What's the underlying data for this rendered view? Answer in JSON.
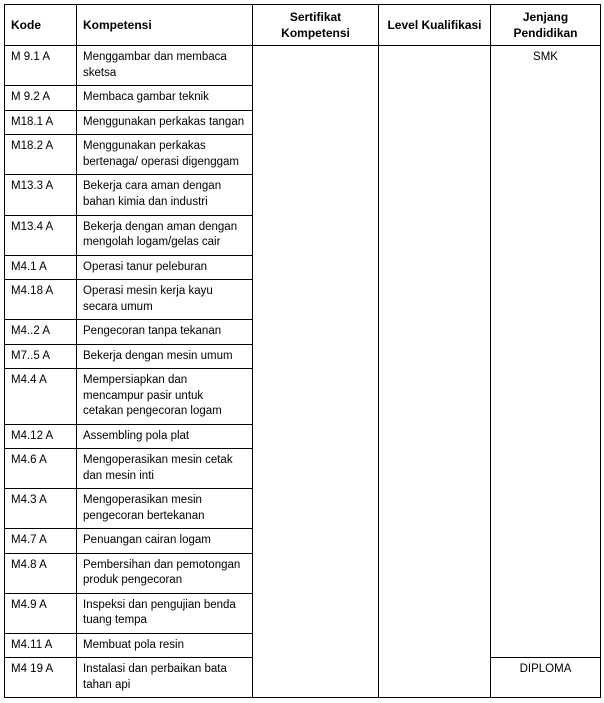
{
  "headers": {
    "kode": "Kode",
    "kompetensi": "Kompetensi",
    "sertifikat": "Sertifikat Kompetensi",
    "level": "Level Kualifikasi",
    "jenjang": "Jenjang Pendidikan"
  },
  "jenjang": {
    "smk": "SMK",
    "diploma": "DIPLOMA"
  },
  "rows": [
    {
      "kode": "M 9.1 A",
      "komp": "Menggambar dan membaca sketsa"
    },
    {
      "kode": "M 9.2 A",
      "komp": "Membaca gambar teknik"
    },
    {
      "kode": "M18.1 A",
      "komp": "Menggunakan perkakas tangan"
    },
    {
      "kode": "M18.2 A",
      "komp": "Menggunakan perkakas bertenaga/ operasi digenggam"
    },
    {
      "kode": "M13.3 A",
      "komp": "Bekerja cara aman dengan bahan kimia dan industri"
    },
    {
      "kode": "M13.4 A",
      "komp": "Bekerja dengan aman dengan mengolah logam/gelas cair"
    },
    {
      "kode": "M4.1 A",
      "komp": "Operasi tanur peleburan"
    },
    {
      "kode": "M4.18 A",
      "komp": "Operasi mesin kerja kayu secara umum"
    },
    {
      "kode": "M4..2 A",
      "komp": "Pengecoran tanpa tekanan"
    },
    {
      "kode": "M7..5 A",
      "komp": "Bekerja dengan mesin umum"
    },
    {
      "kode": "M4.4 A",
      "komp": "Mempersiapkan dan mencampur pasir untuk cetakan pengecoran logam"
    },
    {
      "kode": "M4.12 A",
      "komp": "Assembling pola plat"
    },
    {
      "kode": "M4.6 A",
      "komp": "Mengoperasikan mesin cetak dan mesin inti"
    },
    {
      "kode": "M4.3 A",
      "komp": "Mengoperasikan mesin pengecoran bertekanan"
    },
    {
      "kode": "M4.7 A",
      "komp": "Penuangan cairan logam"
    },
    {
      "kode": "M4.8 A",
      "komp": "Pembersihan dan pemotongan produk pengecoran"
    },
    {
      "kode": "M4.9 A",
      "komp": "Inspeksi dan pengujian benda tuang tempa"
    },
    {
      "kode": "M4.11 A",
      "komp": "Membuat pola resin"
    },
    {
      "kode": "M4 19 A",
      "komp": "Instalasi dan perbaikan bata tahan api"
    }
  ]
}
